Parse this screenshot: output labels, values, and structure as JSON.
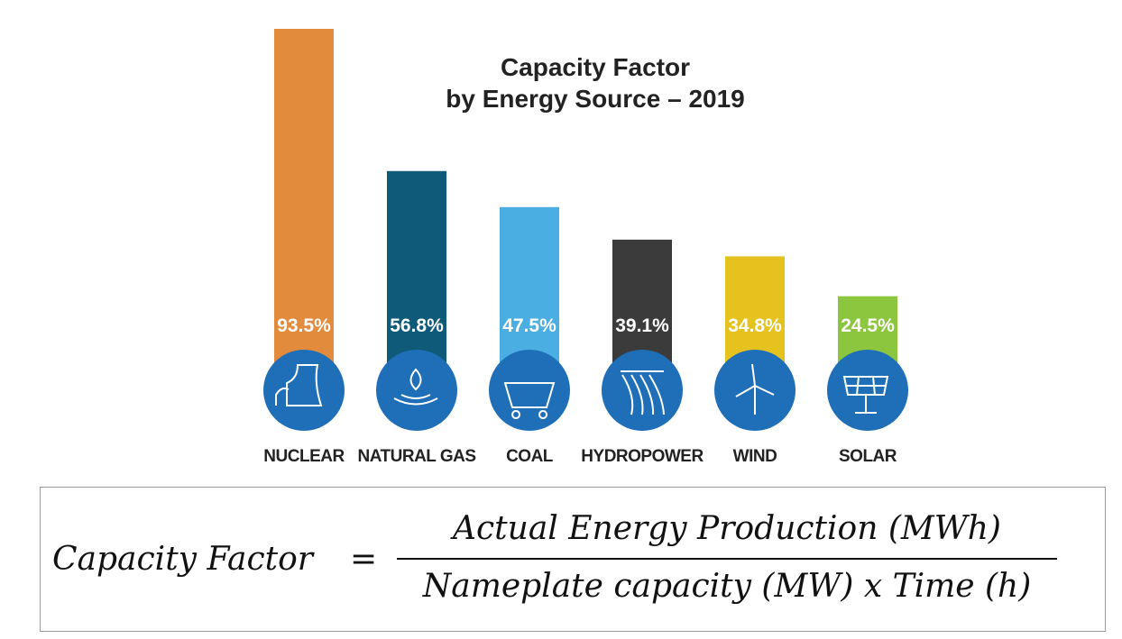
{
  "chart_data": {
    "type": "bar",
    "title": "Capacity Factor",
    "subtitle": "by Energy Source – 2019",
    "categories": [
      "NUCLEAR",
      "NATURAL GAS",
      "COAL",
      "HYDROPOWER",
      "WIND",
      "SOLAR"
    ],
    "values": [
      93.5,
      56.8,
      47.5,
      39.1,
      34.8,
      24.5
    ],
    "value_labels": [
      "93.5%",
      "56.8%",
      "47.5%",
      "39.1%",
      "34.8%",
      "24.5%"
    ],
    "colors": [
      "#e38b3c",
      "#0e5a78",
      "#4aaee3",
      "#3b3b3b",
      "#e6c21f",
      "#8cc63f"
    ]
  },
  "formula": {
    "lhs": "Capacity Factor",
    "equals": "=",
    "numerator": "Actual Energy Production (MWh)",
    "denominator": "Nameplate capacity (MW) x Time (h)"
  }
}
